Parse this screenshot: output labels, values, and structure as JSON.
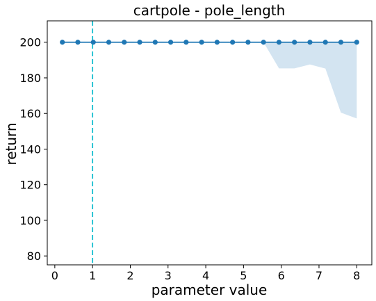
{
  "chart_data": {
    "type": "line",
    "title": "cartpole - pole_length",
    "xlabel": "parameter value",
    "ylabel": "return",
    "xlim": [
      -0.2,
      8.4
    ],
    "ylim": [
      75,
      212
    ],
    "grid": false,
    "x_ticks": [
      0,
      1,
      2,
      3,
      4,
      5,
      6,
      7,
      8
    ],
    "y_ticks": [
      80,
      100,
      120,
      140,
      160,
      180,
      200
    ],
    "reference_line": {
      "x": 1,
      "style": "dashed",
      "color": "#17becf"
    },
    "series": [
      {
        "x": [
          0.2,
          0.61,
          1.02,
          1.43,
          1.84,
          2.25,
          2.66,
          3.07,
          3.48,
          3.89,
          4.3,
          4.71,
          5.12,
          5.53,
          5.94,
          6.35,
          6.76,
          7.17,
          7.58,
          8.0
        ],
        "values": [
          200,
          200,
          200,
          200,
          200,
          200,
          200,
          200,
          200,
          200,
          200,
          200,
          200,
          200,
          200,
          200,
          200,
          200,
          200,
          200
        ],
        "band_upper": [
          200,
          200,
          200,
          200,
          200,
          200,
          200,
          200,
          200,
          200,
          200,
          200,
          200,
          200,
          200,
          200,
          200,
          200,
          200,
          200
        ],
        "band_lower": [
          200,
          200,
          200,
          200,
          200,
          200,
          200,
          200,
          200,
          200,
          200,
          200,
          200,
          200,
          185.3,
          185.3,
          187.5,
          185.2,
          160.5,
          157.2
        ],
        "color": "#1f77b4",
        "band_color": "#d3e4f1"
      }
    ]
  }
}
